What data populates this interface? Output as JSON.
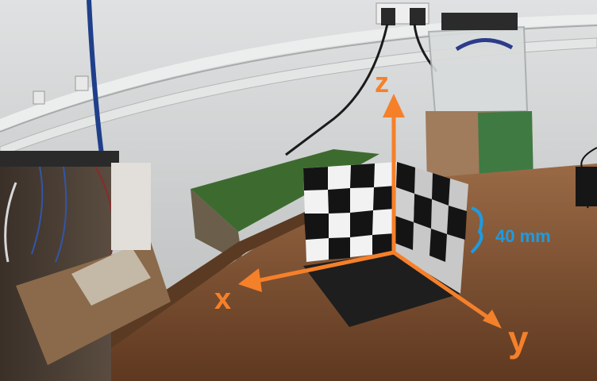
{
  "annotations": {
    "axis_x": "x",
    "axis_y": "y",
    "axis_z": "z",
    "dimension": "40 mm"
  },
  "colors": {
    "axis": "#f5802a",
    "dimension": "#1e9be0",
    "wall": "#d2d4d4",
    "bench": "#7a4a2a",
    "checker_dark": "#141414",
    "checker_light": "#f2f2f2"
  }
}
